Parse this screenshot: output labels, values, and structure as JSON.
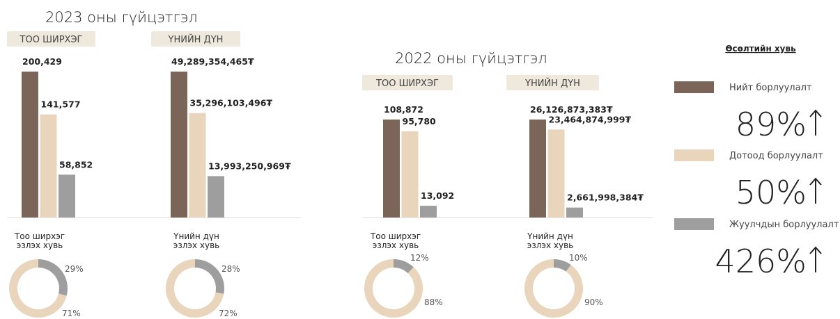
{
  "sections": [
    "2023 оны гүйцэтгэл",
    "2022 оны гүйцэтгэл"
  ],
  "chart_data": [
    {
      "type": "bar",
      "title": "ТОО ШИРХЭГ",
      "values": [
        200429,
        141577,
        58852
      ],
      "value_labels": [
        "200,429",
        "141,577",
        "58,852"
      ],
      "colors": [
        "#7a6558",
        "#e8d5bb",
        "#9e9e9e"
      ]
    },
    {
      "type": "bar",
      "title": "ҮНИЙН ДҮН",
      "values": [
        49289354465,
        35296103496,
        13993250969
      ],
      "value_labels": [
        "49,289,354,465₮",
        "35,296,103,496₮",
        "13,993,250,969₮"
      ],
      "colors": [
        "#7a6558",
        "#e8d5bb",
        "#9e9e9e"
      ]
    },
    {
      "type": "bar",
      "title": "ТОО ШИРХЭГ",
      "values": [
        108872,
        95780,
        13092
      ],
      "value_labels": [
        "108,872",
        "95,780",
        "13,092"
      ],
      "colors": [
        "#7a6558",
        "#e8d5bb",
        "#9e9e9e"
      ]
    },
    {
      "type": "bar",
      "title": "ҮНИЙН ДҮН",
      "values": [
        26126873383,
        23464874999,
        2661998384
      ],
      "value_labels": [
        "26,126,873,383₮",
        "23,464,874,999₮",
        "2,661,998,384₮"
      ],
      "colors": [
        "#7a6558",
        "#e8d5bb",
        "#9e9e9e"
      ]
    },
    {
      "type": "pie",
      "title": "Тоо ширхэг эзлэх хувь",
      "values": [
        29,
        71
      ],
      "value_labels": [
        "29%",
        "71%"
      ],
      "colors": [
        "#9e9e9e",
        "#e8d5bb"
      ]
    },
    {
      "type": "pie",
      "title": "Үнийн дүн эзлэх хувь",
      "values": [
        28,
        72
      ],
      "value_labels": [
        "28%",
        "72%"
      ],
      "colors": [
        "#9e9e9e",
        "#e8d5bb"
      ]
    },
    {
      "type": "pie",
      "title": "Тоо ширхэг эзлэх хувь",
      "values": [
        12,
        88
      ],
      "value_labels": [
        "12%",
        "88%"
      ],
      "colors": [
        "#9e9e9e",
        "#e8d5bb"
      ]
    },
    {
      "type": "pie",
      "title": "Үнийн дүн эзлэх хувь",
      "values": [
        10,
        90
      ],
      "value_labels": [
        "10%",
        "90%"
      ],
      "colors": [
        "#9e9e9e",
        "#e8d5bb"
      ]
    }
  ],
  "legend": {
    "title": "Өсөлтийн хувь",
    "items": [
      {
        "name": "Нийт борлуулалт",
        "color": "#7a6558",
        "growth": 89,
        "growth_label": "89%"
      },
      {
        "name": "Дотоод борлуулалт",
        "color": "#e8d5bb",
        "growth": 50,
        "growth_label": "50%"
      },
      {
        "name": "Жуулчдын борлуулалт",
        "color": "#9e9e9e",
        "growth": 426,
        "growth_label": "426%"
      }
    ]
  }
}
